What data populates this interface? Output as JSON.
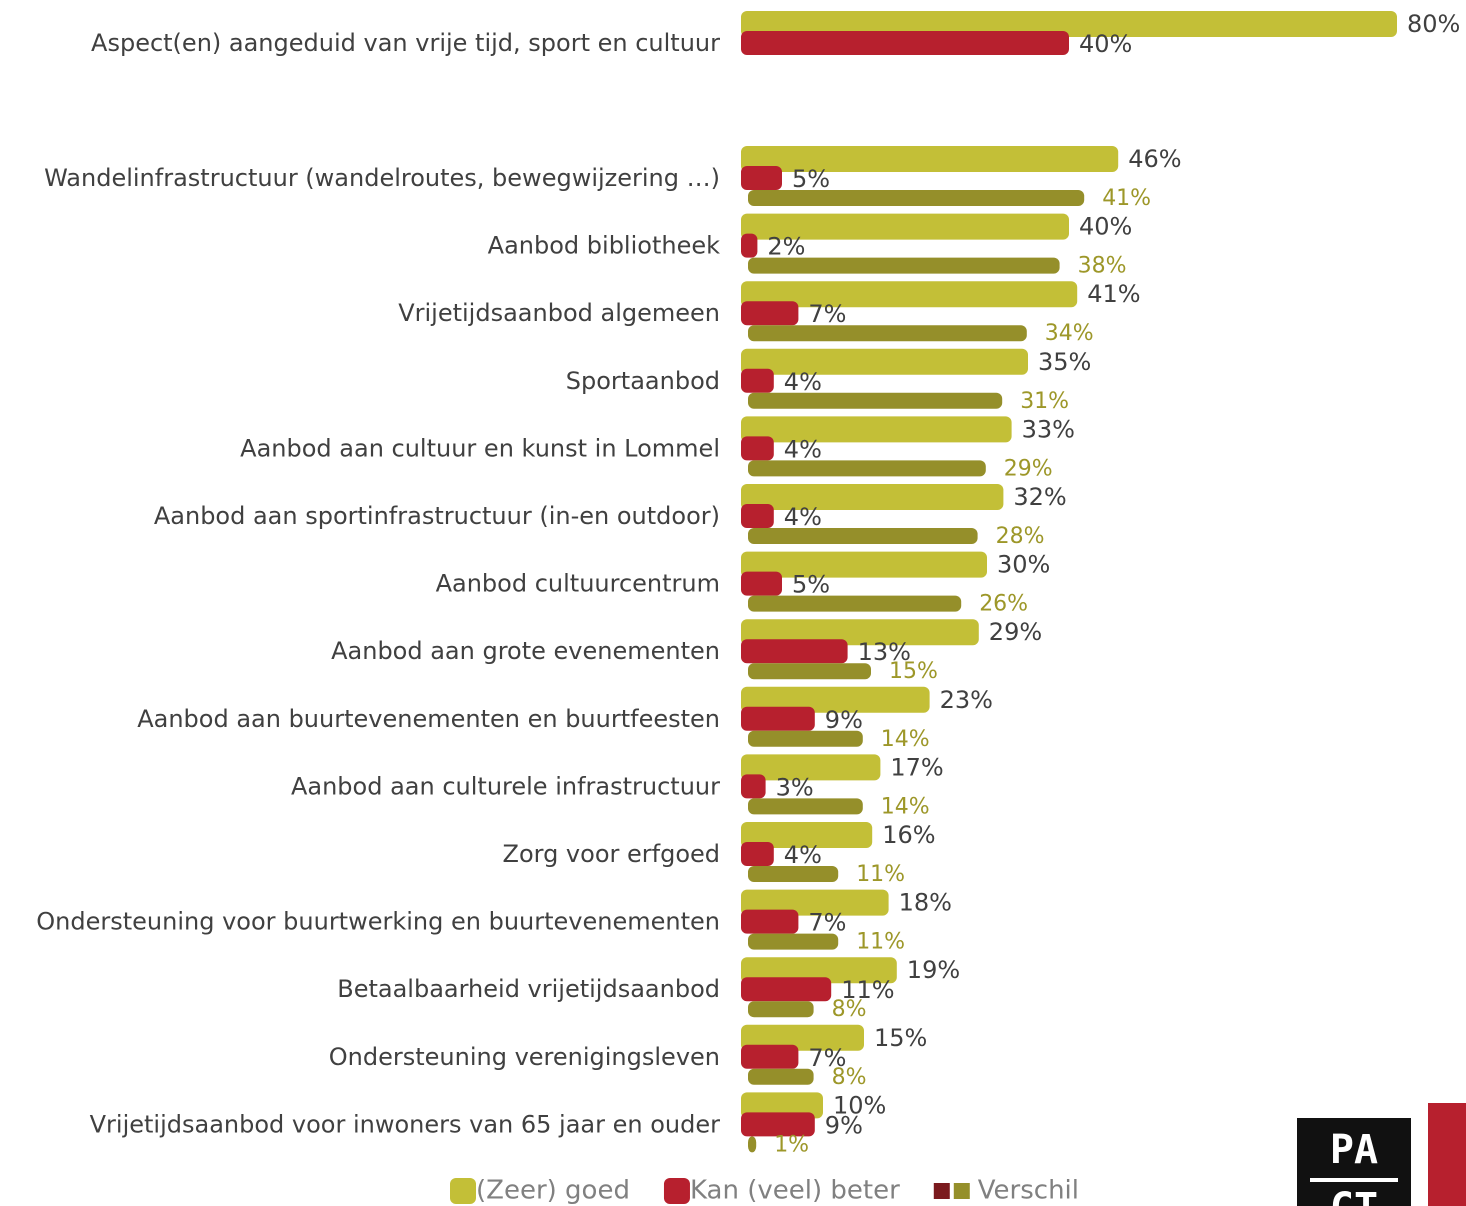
{
  "chart_data": {
    "type": "bar",
    "categories": [
      "Aspect(en) aangeduid van vrije tijd, sport en cultuur",
      "Wandelinfrastructuur (wandelroutes, bewegwijzering …)",
      "Aanbod bibliotheek",
      "Vrijetijdsaanbod algemeen",
      "Sportaanbod",
      "Aanbod aan cultuur en kunst in Lommel",
      "Aanbod aan sportinfrastructuur (in-en outdoor)",
      "Aanbod cultuurcentrum",
      "Aanbod aan grote evenementen",
      "Aanbod aan buurtevenementen en buurtfeesten",
      "Aanbod aan culturele infrastructuur",
      "Zorg voor erfgoed",
      "Ondersteuning voor buurtwerking en buurtevenementen",
      "Betaalbaarheid vrijetijdsaanbod",
      "Ondersteuning verenigingsleven",
      "Vrijetijdsaanbod voor inwoners van 65 jaar en ouder"
    ],
    "series": [
      {
        "name": "(Zeer) goed",
        "color": "#c3bf37",
        "values": [
          80,
          46,
          40,
          41,
          35,
          33,
          32,
          30,
          29,
          23,
          17,
          16,
          18,
          19,
          15,
          10
        ],
        "value_labels": [
          "80%",
          "46%",
          "40%",
          "41%",
          "35%",
          "33%",
          "32%",
          "30%",
          "29%",
          "23%",
          "17%",
          "16%",
          "18%",
          "19%",
          "15%",
          "10%"
        ]
      },
      {
        "name": "Kan (veel) beter",
        "color": "#b7202e",
        "values": [
          40,
          5,
          2,
          7,
          4,
          4,
          4,
          5,
          13,
          9,
          3,
          4,
          7,
          11,
          7,
          9
        ],
        "value_labels": [
          "40%",
          "5%",
          "2%",
          "7%",
          "4%",
          "4%",
          "4%",
          "5%",
          "13%",
          "9%",
          "3%",
          "4%",
          "7%",
          "11%",
          "7%",
          "9%"
        ]
      },
      {
        "name": "Verschil",
        "color": "#958f2a",
        "values": [
          null,
          41,
          38,
          34,
          31,
          29,
          28,
          26,
          15,
          14,
          14,
          11,
          11,
          8,
          8,
          1
        ],
        "value_labels": [
          null,
          "41%",
          "38%",
          "34%",
          "31%",
          "29%",
          "28%",
          "26%",
          "15%",
          "14%",
          "14%",
          "11%",
          "11%",
          "8%",
          "8%",
          "1%"
        ]
      }
    ],
    "logo": [
      "PA",
      "CT"
    ]
  }
}
